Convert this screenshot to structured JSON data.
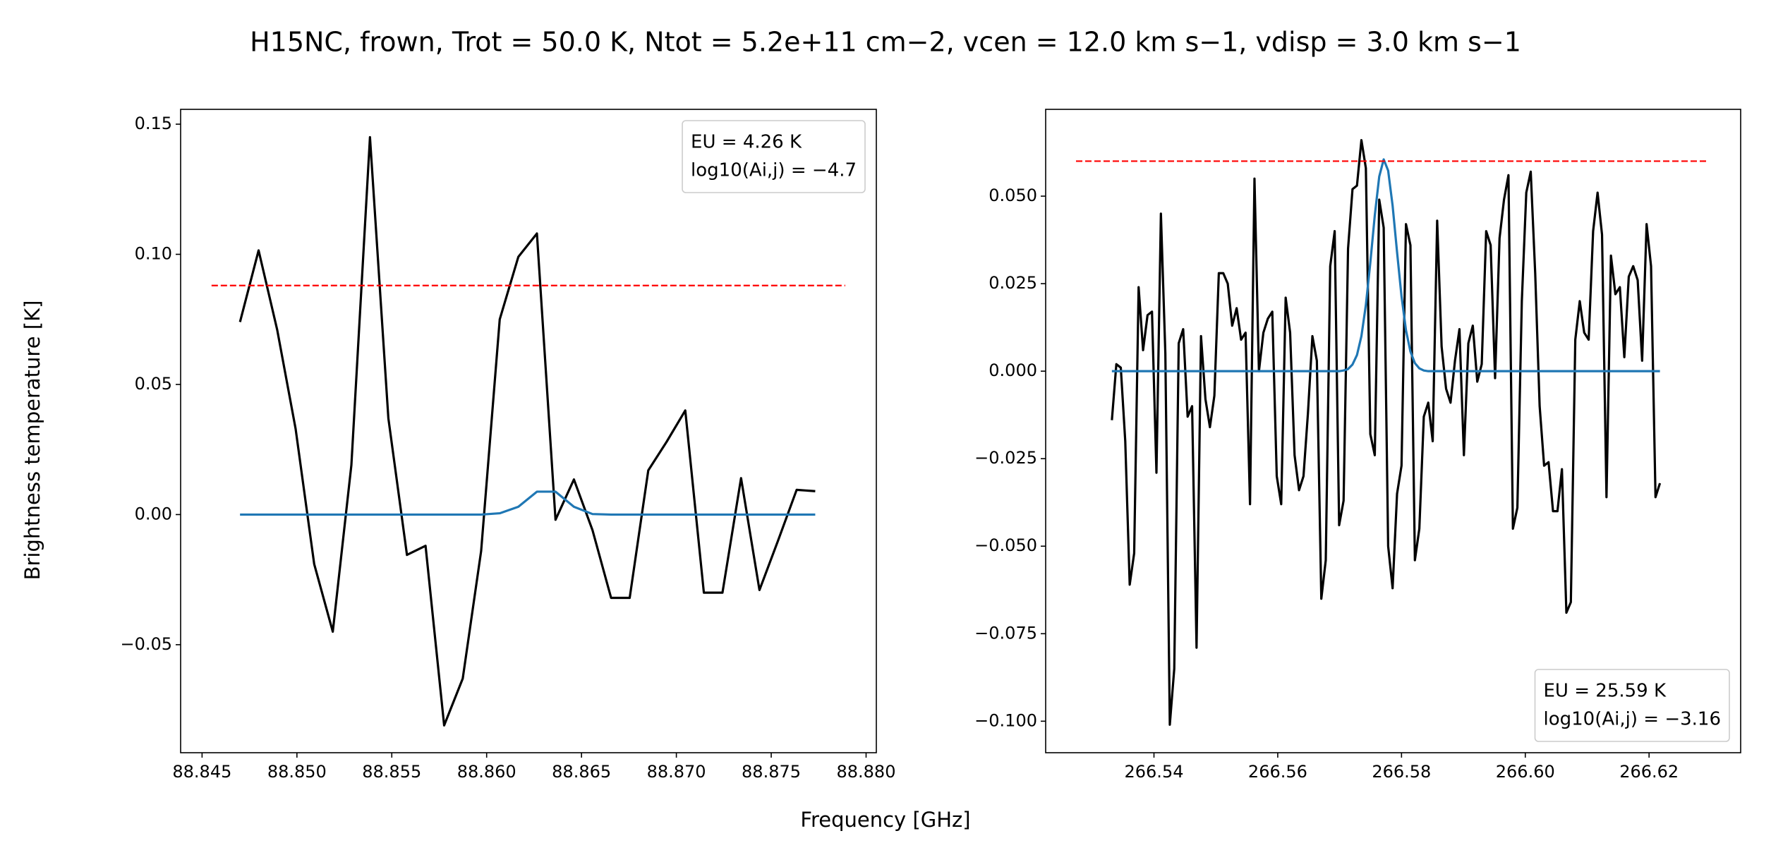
{
  "title": "H15NC, frown, Trot = 50.0 K, Ntot = 5.2e+11 cm−2, vcen = 12.0 km s−1, vdisp = 3.0 km s−1",
  "xlabel": "Frequency [GHz]",
  "ylabel": "Brightness temperature [K]",
  "chart_data": [
    {
      "type": "line",
      "xlim": [
        88.84387,
        88.88054
      ],
      "ylim": [
        -0.0915,
        0.1557
      ],
      "xticks": [
        88.845,
        {
          "value": 88.85,
          "label": "88.850"
        },
        88.855,
        {
          "value": 88.86,
          "label": "88.860"
        },
        88.865,
        {
          "value": 88.87,
          "label": "88.870"
        },
        88.875,
        {
          "value": 88.88,
          "label": "88.880"
        }
      ],
      "yticks": [
        {
          "value": -0.05,
          "label": "−0.05"
        },
        {
          "value": 0,
          "label": "0.00"
        },
        0.05,
        {
          "value": 0.1,
          "label": "0.10"
        },
        0.15
      ],
      "x": [
        88.847,
        88.84798,
        88.84896,
        88.84993,
        88.85091,
        88.85189,
        88.85287,
        88.85385,
        88.85482,
        88.8558,
        88.85678,
        88.85776,
        88.85874,
        88.85971,
        88.86069,
        88.86167,
        88.86265,
        88.86363,
        88.8646,
        88.86558,
        88.86656,
        88.86754,
        88.86852,
        88.86949,
        88.87047,
        88.87145,
        88.87243,
        88.87341,
        88.87438,
        88.87536,
        88.87634,
        88.87732
      ],
      "series": [
        {
          "color": "#000000",
          "values": [
            0.074,
            0.1015,
            0.071,
            0.033,
            -0.019,
            -0.045,
            0.019,
            0.145,
            0.037,
            -0.0155,
            -0.012,
            -0.081,
            -0.063,
            -0.014,
            0.075,
            0.099,
            0.108,
            -0.002,
            0.0135,
            -0.006,
            -0.032,
            -0.032,
            0.017,
            0.028,
            0.04,
            -0.03,
            -0.03,
            0.014,
            -0.029,
            -0.01,
            0.0095,
            0.009
          ]
        },
        {
          "color": "#1f77b4",
          "values": [
            0,
            0,
            0,
            0,
            0,
            0,
            0,
            0,
            0,
            0,
            0,
            0,
            0,
            0,
            0.0005,
            0.003,
            0.0088,
            0.0088,
            0.003,
            0.0002,
            0,
            0,
            0,
            0,
            0,
            0,
            0,
            0,
            0,
            0,
            0,
            0
          ]
        },
        {
          "color": "#ff0000",
          "style": "dashed",
          "x": [
            88.8455,
            88.8789
          ],
          "values": [
            0.088,
            0.088
          ]
        }
      ],
      "annotation": [
        "EU = 4.26 K",
        "log10(Ai,j) = −4.7"
      ],
      "annotation_loc": "upper right"
    },
    {
      "type": "line",
      "xlim": [
        266.5225,
        266.6348
      ],
      "ylim": [
        -0.109,
        0.0748
      ],
      "xticks": [
        266.54,
        266.56,
        266.58,
        {
          "value": 266.6,
          "label": "266.60"
        },
        266.62
      ],
      "yticks": [
        {
          "value": -0.1,
          "label": "−0.100"
        },
        {
          "value": -0.075,
          "label": "−0.075"
        },
        {
          "value": -0.05,
          "label": "−0.050"
        },
        {
          "value": -0.025,
          "label": "−0.025"
        },
        {
          "value": 0,
          "label": "0.000"
        },
        0.025,
        {
          "value": 0.05,
          "label": "0.050"
        }
      ],
      "x": [
        266.5332,
        266.53392,
        266.53464,
        266.53536,
        266.53608,
        266.5368,
        266.53752,
        266.53824,
        266.53896,
        266.53968,
        266.5404,
        266.54112,
        266.54184,
        266.54256,
        266.54328,
        266.544,
        266.54472,
        266.54544,
        266.54616,
        266.54688,
        266.5476,
        266.54832,
        266.54904,
        266.54976,
        266.55048,
        266.5512,
        266.55192,
        266.55264,
        266.55336,
        266.55408,
        266.5548,
        266.55552,
        266.55624,
        266.55696,
        266.55768,
        266.5584,
        266.55912,
        266.55984,
        266.56056,
        266.56128,
        266.562,
        266.56272,
        266.56344,
        266.56416,
        266.56488,
        266.5656,
        266.56632,
        266.56704,
        266.56776,
        266.56848,
        266.5692,
        266.56992,
        266.57064,
        266.57136,
        266.57208,
        266.5728,
        266.57352,
        266.57424,
        266.57496,
        266.57568,
        266.5764,
        266.57712,
        266.57784,
        266.57856,
        266.57928,
        266.58,
        266.58072,
        266.58144,
        266.58216,
        266.58288,
        266.5836,
        266.58432,
        266.58504,
        266.58576,
        266.58648,
        266.5872,
        266.58792,
        266.58864,
        266.58936,
        266.59008,
        266.5908,
        266.59152,
        266.59224,
        266.59296,
        266.59368,
        266.5944,
        266.59512,
        266.59584,
        266.59656,
        266.59728,
        266.598,
        266.59872,
        266.59944,
        266.60016,
        266.60088,
        266.6016,
        266.60232,
        266.60304,
        266.60376,
        266.60448,
        266.6052,
        266.60592,
        266.60664,
        266.60736,
        266.60808,
        266.6088,
        266.60952,
        266.61024,
        266.61096,
        266.61168,
        266.6124,
        266.61312,
        266.61384,
        266.61456,
        266.61528,
        266.616,
        266.61672,
        266.61744,
        266.61816,
        266.61888,
        266.6196,
        266.62032,
        266.62104,
        266.62176
      ],
      "series": [
        {
          "color": "#000000",
          "values": [
            -0.014,
            0.002,
            0.001,
            -0.02,
            -0.061,
            -0.052,
            0.024,
            0.006,
            0.016,
            0.017,
            -0.029,
            0.045,
            0.005,
            -0.101,
            -0.085,
            0.008,
            0.012,
            -0.013,
            -0.01,
            -0.079,
            0.01,
            -0.008,
            -0.016,
            -0.007,
            0.028,
            0.028,
            0.025,
            0.013,
            0.018,
            0.009,
            0.011,
            -0.038,
            0.055,
            0,
            0.011,
            0.015,
            0.017,
            -0.03,
            -0.038,
            0.021,
            0.011,
            -0.024,
            -0.034,
            -0.03,
            -0.012,
            0.01,
            0.003,
            -0.065,
            -0.054,
            0.03,
            0.04,
            -0.044,
            -0.037,
            0.035,
            0.052,
            0.053,
            0.066,
            0.058,
            -0.018,
            -0.024,
            0.049,
            0.041,
            -0.05,
            -0.062,
            -0.035,
            -0.027,
            0.042,
            0.036,
            -0.054,
            -0.045,
            -0.013,
            -0.009,
            -0.02,
            0.043,
            0.007,
            -0.005,
            -0.009,
            0.003,
            0.012,
            -0.024,
            0.008,
            0.013,
            -0.003,
            0.002,
            0.04,
            0.036,
            -0.002,
            0.038,
            0.049,
            0.056,
            -0.045,
            -0.039,
            0.02,
            0.051,
            0.057,
            0.028,
            -0.01,
            -0.027,
            -0.026,
            -0.04,
            -0.04,
            -0.028,
            -0.069,
            -0.066,
            0.009,
            0.02,
            0.011,
            0.009,
            0.04,
            0.051,
            0.039,
            -0.036,
            0.033,
            0.022,
            0.024,
            0.004,
            0.027,
            0.03,
            0.026,
            0.003,
            0.042,
            0.03,
            -0.036,
            -0.032
          ]
        },
        {
          "color": "#1f77b4",
          "values": [
            0,
            0,
            0,
            0,
            0,
            0,
            0,
            0,
            0,
            0,
            0,
            0,
            0,
            0,
            0,
            0,
            0,
            0,
            0,
            0,
            0,
            0,
            0,
            0,
            0,
            0,
            0,
            0,
            0,
            0,
            0,
            0,
            0,
            0,
            0,
            0,
            0,
            0,
            0,
            0,
            0,
            0,
            0,
            0,
            0,
            0,
            0,
            0,
            0,
            0,
            0,
            0,
            0.0002,
            0.0006,
            0.0019,
            0.0046,
            0.01,
            0.0189,
            0.031,
            0.0445,
            0.0556,
            0.0605,
            0.0573,
            0.0473,
            0.034,
            0.0214,
            0.0117,
            0.0056,
            0.0023,
            0.0008,
            0.0002,
            0,
            0,
            0,
            0,
            0,
            0,
            0,
            0,
            0,
            0,
            0,
            0,
            0,
            0,
            0,
            0,
            0,
            0,
            0,
            0,
            0,
            0,
            0,
            0,
            0,
            0,
            0,
            0,
            0,
            0,
            0,
            0,
            0,
            0,
            0,
            0,
            0,
            0,
            0,
            0,
            0,
            0,
            0,
            0,
            0,
            0,
            0,
            0,
            0,
            0,
            0,
            0,
            0
          ]
        },
        {
          "color": "#ff0000",
          "style": "dashed",
          "x": [
            266.5274,
            266.6295
          ],
          "values": [
            0.06,
            0.06
          ]
        }
      ],
      "annotation": [
        "EU = 25.59 K",
        "log10(Ai,j) = −3.16"
      ],
      "annotation_loc": "lower right"
    }
  ]
}
